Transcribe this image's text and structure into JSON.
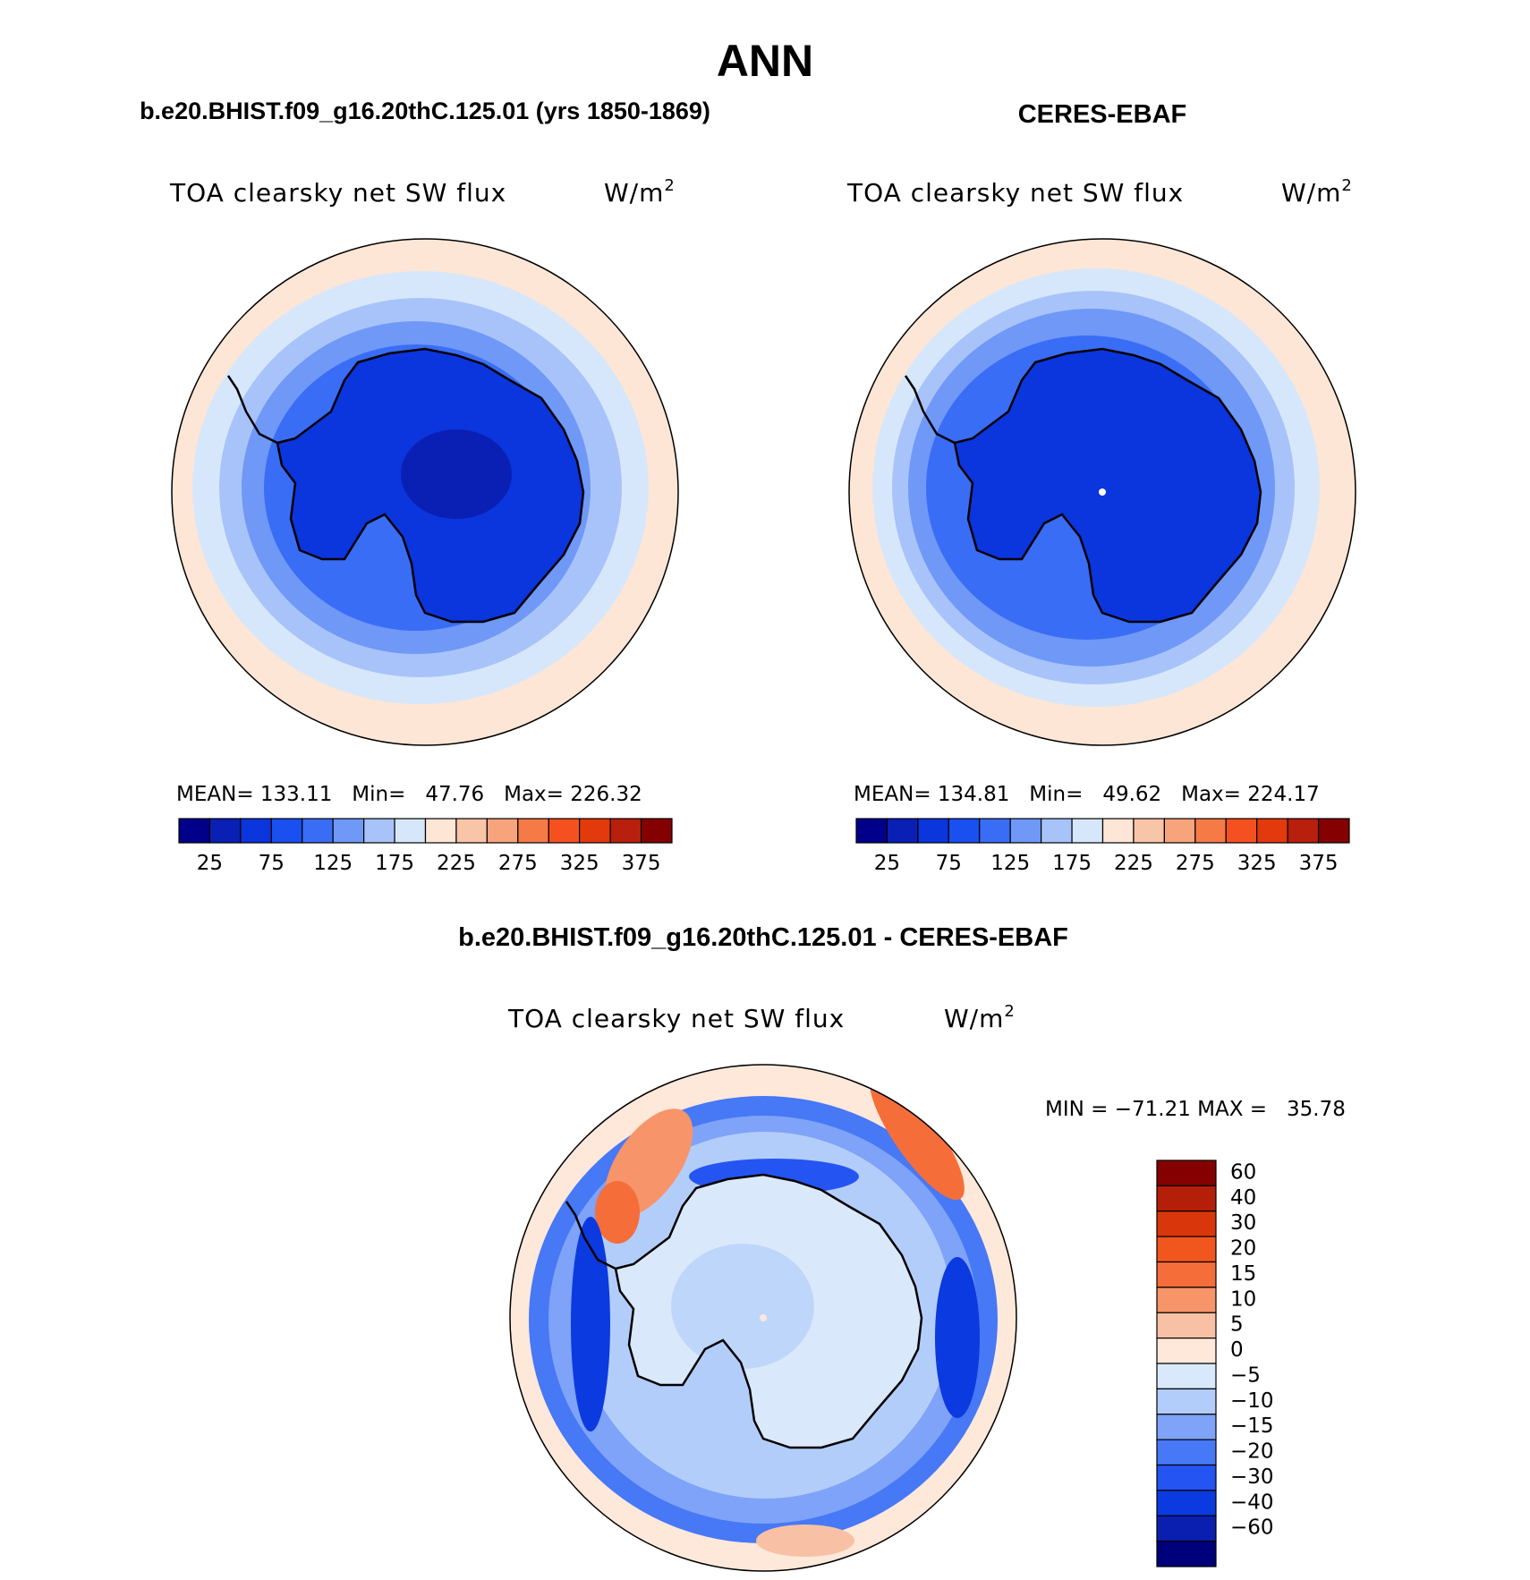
{
  "figure": {
    "title": "ANN"
  },
  "panels": {
    "model": {
      "case_title": "b.e20.BHIST.f09_g16.20thC.125.01 (yrs 1850-1869)",
      "variable": "TOA clearsky net SW flux",
      "units": "W/m",
      "units_exp": "2",
      "stats": "MEAN= 133.11   Min=   47.76   Max= 226.32"
    },
    "obs": {
      "case_title": "CERES-EBAF",
      "variable": "TOA clearsky net SW flux",
      "units": "W/m",
      "units_exp": "2",
      "stats": "MEAN= 134.81   Min=   49.62   Max= 224.17"
    },
    "diff": {
      "case_title": "b.e20.BHIST.f09_g16.20thC.125.01 - CERES-EBAF",
      "variable": "TOA clearsky net SW flux",
      "units": "W/m",
      "units_exp": "2",
      "stats": "MIN = −71.21 MAX =   35.78"
    }
  },
  "colorbars": {
    "abs": {
      "colors": [
        "#00008b",
        "#0a1fb4",
        "#0b35dd",
        "#1a4ff0",
        "#3a6df5",
        "#6f98f7",
        "#a7c3fa",
        "#d7e7fb",
        "#fde6d6",
        "#f9c5a8",
        "#f7a37c",
        "#f67a45",
        "#f55120",
        "#e23a0d",
        "#b81f0c",
        "#850000"
      ],
      "tick_labels": [
        "25",
        "75",
        "125",
        "175",
        "225",
        "275",
        "325",
        "375"
      ]
    },
    "diff": {
      "colors": [
        "#00007a",
        "#0a1fb0",
        "#0b3ae0",
        "#2455f2",
        "#4778f5",
        "#7ea3f8",
        "#b3cdfb",
        "#d9e9fb",
        "#fde8da",
        "#f8c1a5",
        "#f7946a",
        "#f56e3a",
        "#f1561e",
        "#d9370b",
        "#b51e08",
        "#850000"
      ],
      "tick_labels": [
        "−60",
        "−40",
        "−30",
        "−20",
        "−15",
        "−10",
        "−5",
        "0",
        "5",
        "10",
        "15",
        "20",
        "30",
        "40",
        "60"
      ]
    }
  },
  "chart_data": [
    {
      "type": "heatmap",
      "title": "b.e20.BHIST.f09_g16.20thC.125.01 (yrs 1850-1869)",
      "variable": "TOA clearsky net SW flux",
      "units": "W/m2",
      "projection": "south-polar stereographic",
      "mean": 133.11,
      "min": 47.76,
      "max": 226.32,
      "levels": [
        25,
        50,
        75,
        100,
        125,
        150,
        175,
        200,
        225,
        250,
        275,
        300,
        325,
        350,
        375
      ]
    },
    {
      "type": "heatmap",
      "title": "CERES-EBAF",
      "variable": "TOA clearsky net SW flux",
      "units": "W/m2",
      "projection": "south-polar stereographic",
      "mean": 134.81,
      "min": 49.62,
      "max": 224.17,
      "levels": [
        25,
        50,
        75,
        100,
        125,
        150,
        175,
        200,
        225,
        250,
        275,
        300,
        325,
        350,
        375
      ]
    },
    {
      "type": "heatmap",
      "title": "b.e20.BHIST.f09_g16.20thC.125.01 - CERES-EBAF",
      "variable": "TOA clearsky net SW flux",
      "units": "W/m2",
      "projection": "south-polar stereographic",
      "min": -71.21,
      "max": 35.78,
      "levels": [
        -60,
        -40,
        -30,
        -20,
        -15,
        -10,
        -5,
        0,
        5,
        10,
        15,
        20,
        30,
        40,
        60
      ]
    }
  ]
}
